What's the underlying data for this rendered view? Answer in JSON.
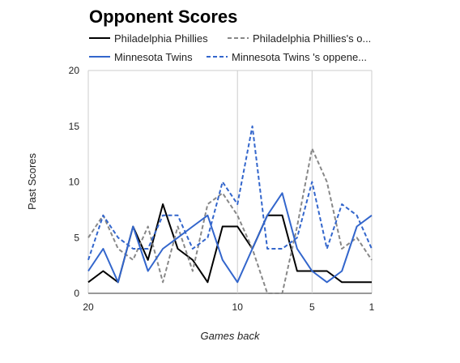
{
  "chart_data": {
    "type": "line",
    "title": "Opponent Scores",
    "xlabel": "Games back",
    "ylabel": "Past Scores",
    "x": [
      20,
      19,
      18,
      17,
      16,
      15,
      14,
      13,
      12,
      11,
      10,
      9,
      8,
      7,
      6,
      5,
      4,
      3,
      2,
      1
    ],
    "xlim": [
      20,
      1
    ],
    "ylim": [
      0,
      20
    ],
    "x_ticks": [
      20,
      10,
      5,
      1
    ],
    "y_ticks": [
      0,
      5,
      10,
      15,
      20
    ],
    "grid": "vertical at x ticks",
    "legend_position": "top",
    "series": [
      {
        "name": "Philadelphia Phillies",
        "color": "#000000",
        "dash": "solid",
        "values": [
          1,
          2,
          1,
          6,
          3,
          8,
          4,
          3,
          1,
          6,
          6,
          4,
          7,
          7,
          2,
          2,
          2,
          1,
          1,
          1
        ]
      },
      {
        "name": "Philadelphia Phillies's o...",
        "color": "#888888",
        "dash": "dashed",
        "values": [
          5,
          7,
          4,
          3,
          6,
          1,
          6,
          2,
          8,
          9,
          7,
          4,
          0,
          0,
          6,
          13,
          10,
          4,
          5,
          3
        ]
      },
      {
        "name": "Minnesota Twins",
        "color": "#3366cc",
        "dash": "solid",
        "values": [
          2,
          4,
          1,
          6,
          2,
          4,
          5,
          6,
          7,
          3,
          1,
          4,
          7,
          9,
          4,
          2,
          1,
          2,
          6,
          7
        ]
      },
      {
        "name": "Minnesota Twins 's oppene...",
        "color": "#3366cc",
        "dash": "dashed",
        "values": [
          3,
          7,
          5,
          4,
          4,
          7,
          7,
          4,
          5,
          10,
          8,
          15,
          4,
          4,
          5,
          10,
          4,
          8,
          7,
          4
        ]
      }
    ]
  }
}
